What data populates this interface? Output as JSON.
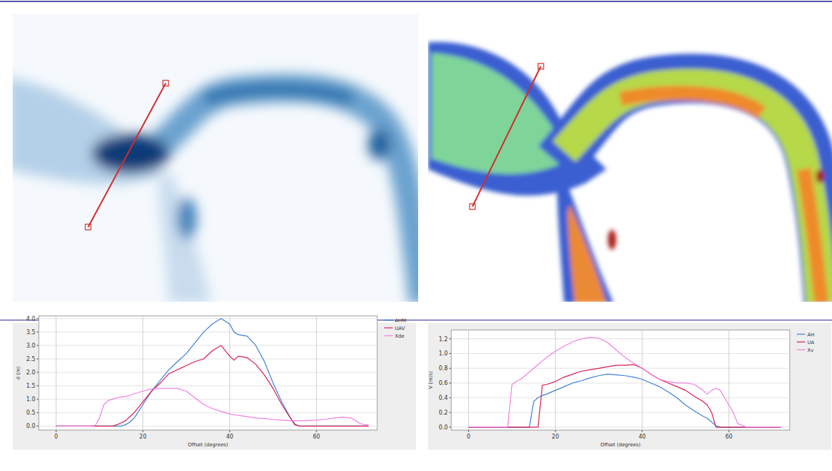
{
  "chart_data": [
    {
      "type": "line",
      "x_label": "Offset (degrees)",
      "y_label": "d (m)",
      "x": [
        0,
        5,
        8,
        9,
        10,
        11,
        12,
        13,
        14,
        15,
        16,
        17,
        18,
        20,
        22,
        24,
        26,
        28,
        30,
        32,
        34,
        36,
        38,
        40,
        41,
        42,
        44,
        46,
        48,
        50,
        52,
        54,
        55,
        56,
        58,
        60,
        62,
        64,
        66,
        68,
        70,
        71,
        72
      ],
      "series": [
        {
          "name": "AHM",
          "color": "#3a7fd5",
          "values": [
            0,
            0,
            0,
            0,
            0,
            0,
            0,
            0,
            0,
            0,
            0.05,
            0.15,
            0.3,
            0.8,
            1.3,
            1.7,
            2.1,
            2.4,
            2.7,
            3.1,
            3.5,
            3.8,
            4.0,
            3.8,
            3.5,
            3.4,
            3.35,
            3.0,
            2.4,
            1.6,
            0.9,
            0.3,
            0.08,
            0,
            0,
            0,
            0,
            0,
            0,
            0,
            0,
            0,
            0
          ]
        },
        {
          "name": "UAV",
          "color": "#d81b50",
          "values": [
            0,
            0,
            0,
            0,
            0,
            0,
            0,
            0,
            0.05,
            0.12,
            0.2,
            0.35,
            0.5,
            0.9,
            1.3,
            1.6,
            1.95,
            2.1,
            2.25,
            2.4,
            2.5,
            2.8,
            3.0,
            2.6,
            2.45,
            2.6,
            2.55,
            2.3,
            1.9,
            1.4,
            0.8,
            0.3,
            0.05,
            0,
            0,
            0,
            0,
            0,
            0,
            0,
            0,
            0,
            0
          ]
        },
        {
          "name": "Xde",
          "color": "#f07ce0",
          "values": [
            0,
            0,
            0,
            0.02,
            0.3,
            0.8,
            0.95,
            1.0,
            1.05,
            1.08,
            1.1,
            1.15,
            1.2,
            1.3,
            1.38,
            1.4,
            1.4,
            1.4,
            1.3,
            1.05,
            0.8,
            0.65,
            0.55,
            0.45,
            0.42,
            0.4,
            0.35,
            0.3,
            0.28,
            0.25,
            0.22,
            0.2,
            0.2,
            0.2,
            0.2,
            0.22,
            0.25,
            0.3,
            0.33,
            0.3,
            0.1,
            0.05,
            0.05
          ]
        }
      ],
      "xlim": [
        -4,
        74
      ],
      "xticks": [
        0,
        20,
        40,
        60
      ],
      "ylim": [
        -0.15,
        4.1
      ],
      "yticks": [
        {
          "value": 0,
          "label": "0.0"
        },
        0.5,
        {
          "value": 1,
          "label": "1.0"
        },
        1.5,
        {
          "value": 2,
          "label": "2.0"
        },
        2.5,
        {
          "value": 3,
          "label": "3.0"
        },
        3.5,
        {
          "value": 4,
          "label": "4.0"
        }
      ],
      "grid": true,
      "legend": "right"
    },
    {
      "type": "line",
      "x_label": "Offset (degrees)",
      "y_label": "V (m/s)",
      "x": [
        0,
        5,
        9,
        10,
        11,
        12,
        14,
        15,
        16,
        17,
        18,
        20,
        22,
        24,
        26,
        28,
        30,
        32,
        34,
        36,
        38,
        40,
        42,
        44,
        46,
        48,
        50,
        52,
        54,
        55,
        56,
        57,
        58,
        59,
        60,
        61,
        62,
        64,
        66,
        68,
        70,
        72
      ],
      "series": [
        {
          "name": "AH",
          "color": "#3a7fd5",
          "values": [
            0,
            0,
            0,
            0,
            0,
            0,
            0,
            0.35,
            0.4,
            0.43,
            0.45,
            0.5,
            0.55,
            0.6,
            0.63,
            0.67,
            0.7,
            0.72,
            0.71,
            0.7,
            0.68,
            0.65,
            0.6,
            0.55,
            0.48,
            0.4,
            0.3,
            0.22,
            0.15,
            0.12,
            0.07,
            0.02,
            0,
            0,
            0,
            0,
            0,
            0,
            0,
            0,
            0,
            0
          ]
        },
        {
          "name": "UA",
          "color": "#d81b50",
          "values": [
            0,
            0,
            0,
            0,
            0,
            0,
            0,
            0,
            0,
            0.57,
            0.58,
            0.62,
            0.68,
            0.72,
            0.76,
            0.78,
            0.8,
            0.82,
            0.84,
            0.84,
            0.85,
            0.8,
            0.72,
            0.65,
            0.6,
            0.55,
            0.5,
            0.42,
            0.35,
            0.3,
            0.2,
            0,
            0,
            0,
            0,
            0,
            0,
            0,
            0,
            0,
            0,
            0
          ]
        },
        {
          "name": "Xv",
          "color": "#f07ce0",
          "values": [
            0,
            0,
            0,
            0.58,
            0.62,
            0.65,
            0.75,
            0.8,
            0.85,
            0.9,
            0.95,
            1.03,
            1.1,
            1.16,
            1.2,
            1.22,
            1.21,
            1.15,
            1.05,
            0.95,
            0.87,
            0.8,
            0.72,
            0.65,
            0.62,
            0.6,
            0.6,
            0.58,
            0.5,
            0.45,
            0.5,
            0.53,
            0.5,
            0.4,
            0.3,
            0.2,
            0.05,
            0,
            0,
            0,
            0,
            0
          ]
        }
      ],
      "xlim": [
        -4,
        74
      ],
      "xticks": [
        0,
        20,
        40,
        60
      ],
      "ylim": [
        -0.04,
        1.32
      ],
      "yticks": [
        {
          "value": 0,
          "label": "0.0"
        },
        0.2,
        0.4,
        0.6,
        0.8,
        {
          "value": 1,
          "label": "1.0"
        },
        1.2
      ],
      "grid": true,
      "legend": "right"
    }
  ]
}
